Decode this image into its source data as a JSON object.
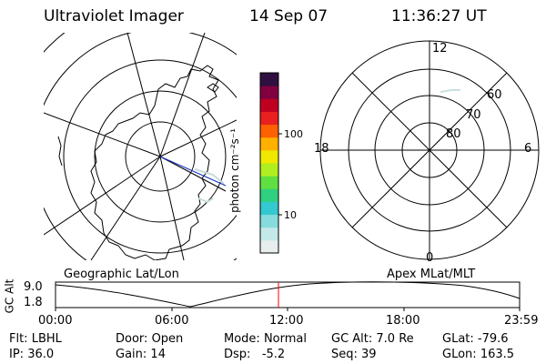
{
  "header": {
    "instrument": "Ultraviolet Imager",
    "date": "14 Sep 07",
    "time": "11:36:27 UT"
  },
  "colorbar": {
    "unit_label": "photon cm⁻²s⁻¹",
    "ticks": [
      "100",
      "10"
    ],
    "colors": [
      "#e8eeee",
      "#c4e8e8",
      "#86dcdc",
      "#34c8d0",
      "#30d080",
      "#60e040",
      "#b0ee20",
      "#f0e800",
      "#ffb000",
      "#ff6000",
      "#e82020",
      "#c00020",
      "#800040",
      "#301040"
    ]
  },
  "left_map": {
    "label": "Geographic Lat/Lon"
  },
  "polar_plot": {
    "label": "Apex MLat/MLT",
    "mlt_labels": [
      "12",
      "18",
      "6",
      "0"
    ],
    "lat_labels": [
      "60",
      "70",
      "80"
    ]
  },
  "orbit_strip": {
    "ylabel": "GC Alt",
    "y_ticks": [
      "9.0",
      "1.8"
    ],
    "x_ticks": [
      "00:00",
      "06:00",
      "12:00",
      "18:00",
      "23:59"
    ],
    "accent_color": "#ff0000"
  },
  "status": {
    "row1": [
      {
        "label": "Flt:",
        "value": "LBHL"
      },
      {
        "label": "Door:",
        "value": "Open"
      },
      {
        "label": "Mode:",
        "value": "Normal"
      },
      {
        "label": "GC Alt:",
        "value": "7.0 Re"
      },
      {
        "label": "GLat:",
        "value": "-79.6"
      }
    ],
    "row2": [
      {
        "label": "IP:",
        "value": "36.0"
      },
      {
        "label": "Gain:",
        "value": "14"
      },
      {
        "label": "Dsp:",
        "value": "-5.2"
      },
      {
        "label": "Seq:",
        "value": "39"
      },
      {
        "label": "GLon:",
        "value": "163.5"
      }
    ]
  }
}
